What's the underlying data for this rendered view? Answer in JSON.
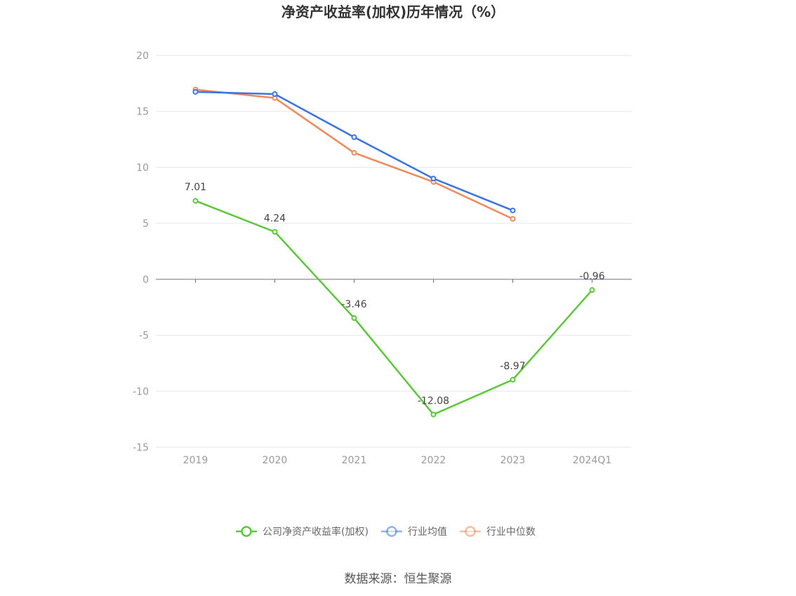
{
  "title": "净资产收益率(加权)历年情况（%）",
  "source": "数据来源：恒生聚源",
  "chart_data": {
    "type": "line",
    "categories": [
      "2019",
      "2020",
      "2021",
      "2022",
      "2023",
      "2024Q1"
    ],
    "ylim": [
      -15,
      20
    ],
    "yticks": [
      20,
      15,
      10,
      5,
      0,
      -5,
      -10,
      -15
    ],
    "grid": true,
    "legend_position": "bottom",
    "series": [
      {
        "name": "公司净资产收益率(加权)",
        "color": "#5cc73a",
        "values": [
          7.01,
          4.24,
          -3.46,
          -12.08,
          -8.97,
          -0.96
        ],
        "labels": [
          "7.01",
          "4.24",
          "-3.46",
          "-12.08",
          "-8.97",
          "-0.96"
        ]
      },
      {
        "name": "行业均值",
        "color": "#3b74e3",
        "values": [
          16.75,
          16.55,
          12.7,
          9.0,
          6.15,
          null
        ]
      },
      {
        "name": "行业中位数",
        "color": "#f08a5a",
        "values": [
          16.95,
          16.2,
          11.3,
          8.7,
          5.4,
          null
        ]
      }
    ]
  }
}
